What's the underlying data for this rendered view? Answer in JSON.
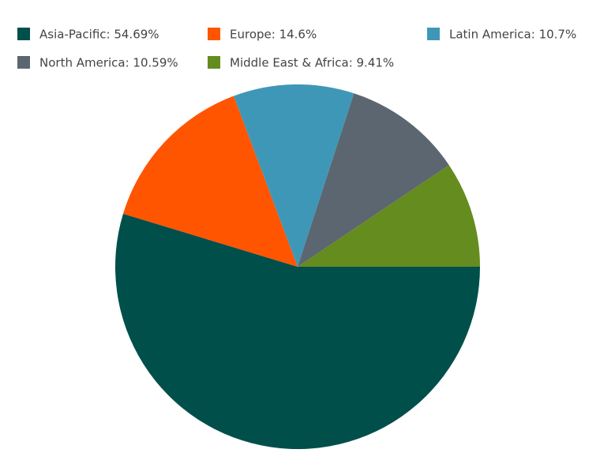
{
  "chart_data": {
    "type": "pie",
    "values": [
      54.69,
      14.6,
      10.7,
      10.59,
      9.41
    ],
    "value_labels": [
      "Asia-Pacific: 54.69%",
      "Europe: 14.6%",
      "Latin America: 10.7%",
      "North America: 10.59%",
      "Middle East & Africa: 9.41%"
    ],
    "colors": [
      "#004f4b",
      "#ff5500",
      "#3f97b7",
      "#5b6670",
      "#648c1e"
    ]
  }
}
